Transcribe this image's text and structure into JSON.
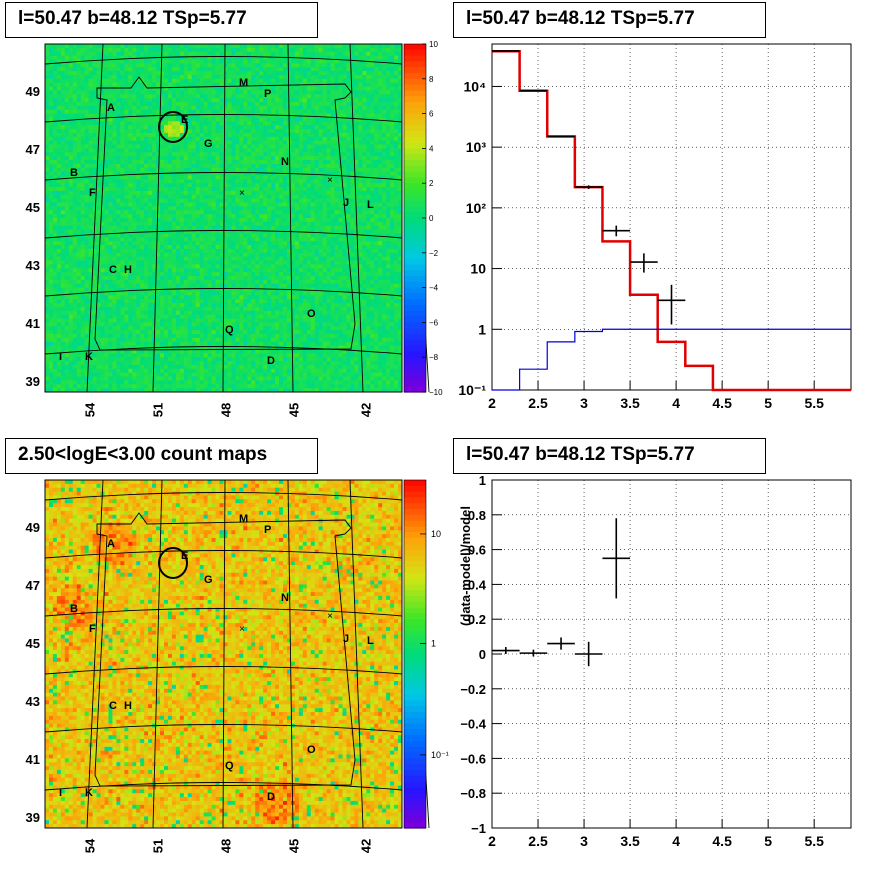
{
  "panels": {
    "tl": {
      "title": "l=50.47 b=48.12 TSp=5.77"
    },
    "tr": {
      "title": "l=50.47 b=48.12 TSp=5.77"
    },
    "bl": {
      "title": "2.50<logE<3.00 count maps"
    },
    "br": {
      "title": "l=50.47 b=48.12 TSp=5.77"
    }
  },
  "colors": {
    "red": "#e00000",
    "blue": "#0000e0",
    "black": "#000000"
  },
  "chart_data": [
    {
      "type": "heatmap",
      "subtype": "residual significance map (sky)",
      "x_ticks": [
        "54",
        "51",
        "48",
        "45",
        "42"
      ],
      "y_ticks": [
        "49",
        "47",
        "45",
        "43",
        "41",
        "39"
      ],
      "colorbar": {
        "scale": "linear",
        "ticks": [
          "10",
          "8",
          "6",
          "4",
          "2",
          "0",
          "−2",
          "−4",
          "−6",
          "−8",
          "−10"
        ],
        "range": [
          -10,
          10
        ]
      },
      "source_labels": [
        "A",
        "B",
        "C",
        "D",
        "E",
        "F",
        "G",
        "H",
        "I",
        "J",
        "K",
        "L",
        "M",
        "N",
        "O",
        "P",
        "Q"
      ],
      "source_markers": [
        "×",
        "×"
      ]
    },
    {
      "type": "line",
      "subtype": "spectrum",
      "xlim": [
        2,
        5.9
      ],
      "ylim": [
        0.1,
        50000
      ],
      "yscale": "log",
      "x_ticks": [
        "2",
        "2.5",
        "3",
        "3.5",
        "4",
        "4.5",
        "5",
        "5.5"
      ],
      "y_ticks": [
        "10⁻¹",
        "1",
        "10",
        "10²",
        "10³",
        "10⁴"
      ],
      "grid": true,
      "series": [
        {
          "color": "#e00000",
          "kind": "step",
          "edges": [
            2,
            2.3,
            2.6,
            2.9,
            3.2,
            3.5,
            3.8,
            4.1,
            4.4,
            5.9
          ],
          "values": [
            38000,
            8500,
            1500,
            220,
            28,
            3.7,
            0.62,
            0.25,
            0.1
          ]
        },
        {
          "color": "#0000e0",
          "kind": "step",
          "edges": [
            2,
            2.3,
            2.6,
            2.9,
            3.2,
            3.5,
            3.8,
            4.1,
            4.4,
            5.9
          ],
          "values": [
            0.05,
            0.22,
            0.62,
            0.92,
            1.0,
            1.0,
            1.0,
            1.0,
            1.0
          ]
        },
        {
          "color": "#000000",
          "kind": "points",
          "x": [
            2.15,
            2.45,
            2.75,
            3.05,
            3.35,
            3.65,
            3.95
          ],
          "xerr": [
            0.15,
            0.15,
            0.15,
            0.15,
            0.15,
            0.15,
            0.15
          ],
          "y": [
            38500,
            8550,
            1510,
            220,
            42,
            12.8,
            3.0
          ],
          "yerr_lo": [
            200,
            90,
            40,
            15,
            8,
            4.2,
            1.8
          ],
          "yerr_hi": [
            200,
            90,
            40,
            15,
            9,
            5.0,
            2.4
          ]
        }
      ]
    },
    {
      "type": "heatmap",
      "subtype": "counts map (sky)",
      "x_ticks": [
        "54",
        "51",
        "48",
        "45",
        "42"
      ],
      "y_ticks": [
        "49",
        "47",
        "45",
        "43",
        "41",
        "39"
      ],
      "colorbar": {
        "scale": "log",
        "ticks": [
          "10",
          "1",
          "10⁻¹"
        ]
      },
      "source_labels": [
        "A",
        "B",
        "C",
        "D",
        "E",
        "F",
        "G",
        "H",
        "I",
        "J",
        "K",
        "L",
        "M",
        "N",
        "O",
        "P",
        "Q"
      ],
      "source_markers": [
        "×",
        "×"
      ]
    },
    {
      "type": "scatter",
      "subtype": "residuals",
      "xlim": [
        2,
        5.9
      ],
      "ylim": [
        -1,
        1
      ],
      "ylabel": "(data-model)/model",
      "x_ticks": [
        "2",
        "2.5",
        "3",
        "3.5",
        "4",
        "4.5",
        "5",
        "5.5"
      ],
      "y_ticks": [
        "1",
        "0.8",
        "0.6",
        "0.4",
        "0.2",
        "0",
        "−0.2",
        "−0.4",
        "−0.6",
        "−0.8",
        "−1"
      ],
      "grid": true,
      "points": {
        "x": [
          2.15,
          2.45,
          2.75,
          3.05,
          3.35
        ],
        "xerr": [
          0.15,
          0.15,
          0.15,
          0.15,
          0.15
        ],
        "y": [
          0.02,
          0.005,
          0.06,
          0.0,
          0.55
        ],
        "yerr": [
          0.02,
          0.02,
          0.035,
          0.07,
          0.23
        ]
      }
    }
  ]
}
